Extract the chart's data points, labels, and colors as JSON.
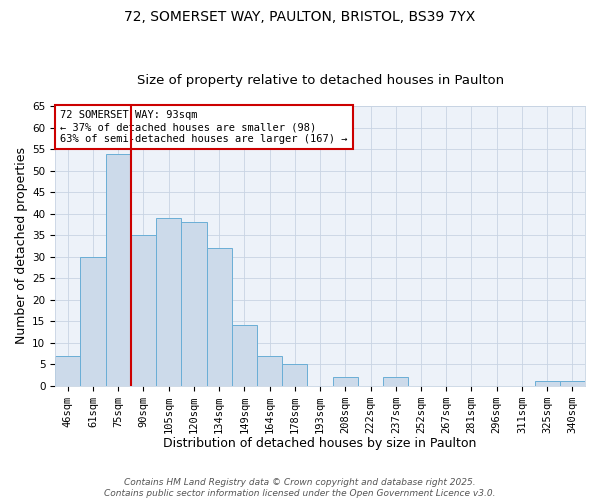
{
  "title1": "72, SOMERSET WAY, PAULTON, BRISTOL, BS39 7YX",
  "title2": "Size of property relative to detached houses in Paulton",
  "xlabel": "Distribution of detached houses by size in Paulton",
  "ylabel": "Number of detached properties",
  "categories": [
    "46sqm",
    "61sqm",
    "75sqm",
    "90sqm",
    "105sqm",
    "120sqm",
    "134sqm",
    "149sqm",
    "164sqm",
    "178sqm",
    "193sqm",
    "208sqm",
    "222sqm",
    "237sqm",
    "252sqm",
    "267sqm",
    "281sqm",
    "296sqm",
    "311sqm",
    "325sqm",
    "340sqm"
  ],
  "values": [
    7,
    30,
    54,
    35,
    39,
    38,
    32,
    14,
    7,
    5,
    0,
    2,
    0,
    2,
    0,
    0,
    0,
    0,
    0,
    1,
    1
  ],
  "bar_color": "#ccdaea",
  "bar_edge_color": "#6aaed6",
  "red_line_x": 2.5,
  "red_line_color": "#cc0000",
  "annotation_text": "72 SOMERSET WAY: 93sqm\n← 37% of detached houses are smaller (98)\n63% of semi-detached houses are larger (167) →",
  "annotation_box_color": "#ffffff",
  "annotation_box_edge": "#cc0000",
  "ylim": [
    0,
    65
  ],
  "yticks": [
    0,
    5,
    10,
    15,
    20,
    25,
    30,
    35,
    40,
    45,
    50,
    55,
    60,
    65
  ],
  "background_color": "#ffffff",
  "plot_bg_color": "#edf2f9",
  "grid_color": "#c8d4e3",
  "footer_text": "Contains HM Land Registry data © Crown copyright and database right 2025.\nContains public sector information licensed under the Open Government Licence v3.0.",
  "title1_fontsize": 10,
  "title2_fontsize": 9.5,
  "xlabel_fontsize": 9,
  "ylabel_fontsize": 9,
  "tick_fontsize": 7.5,
  "annotation_fontsize": 7.5,
  "footer_fontsize": 6.5
}
